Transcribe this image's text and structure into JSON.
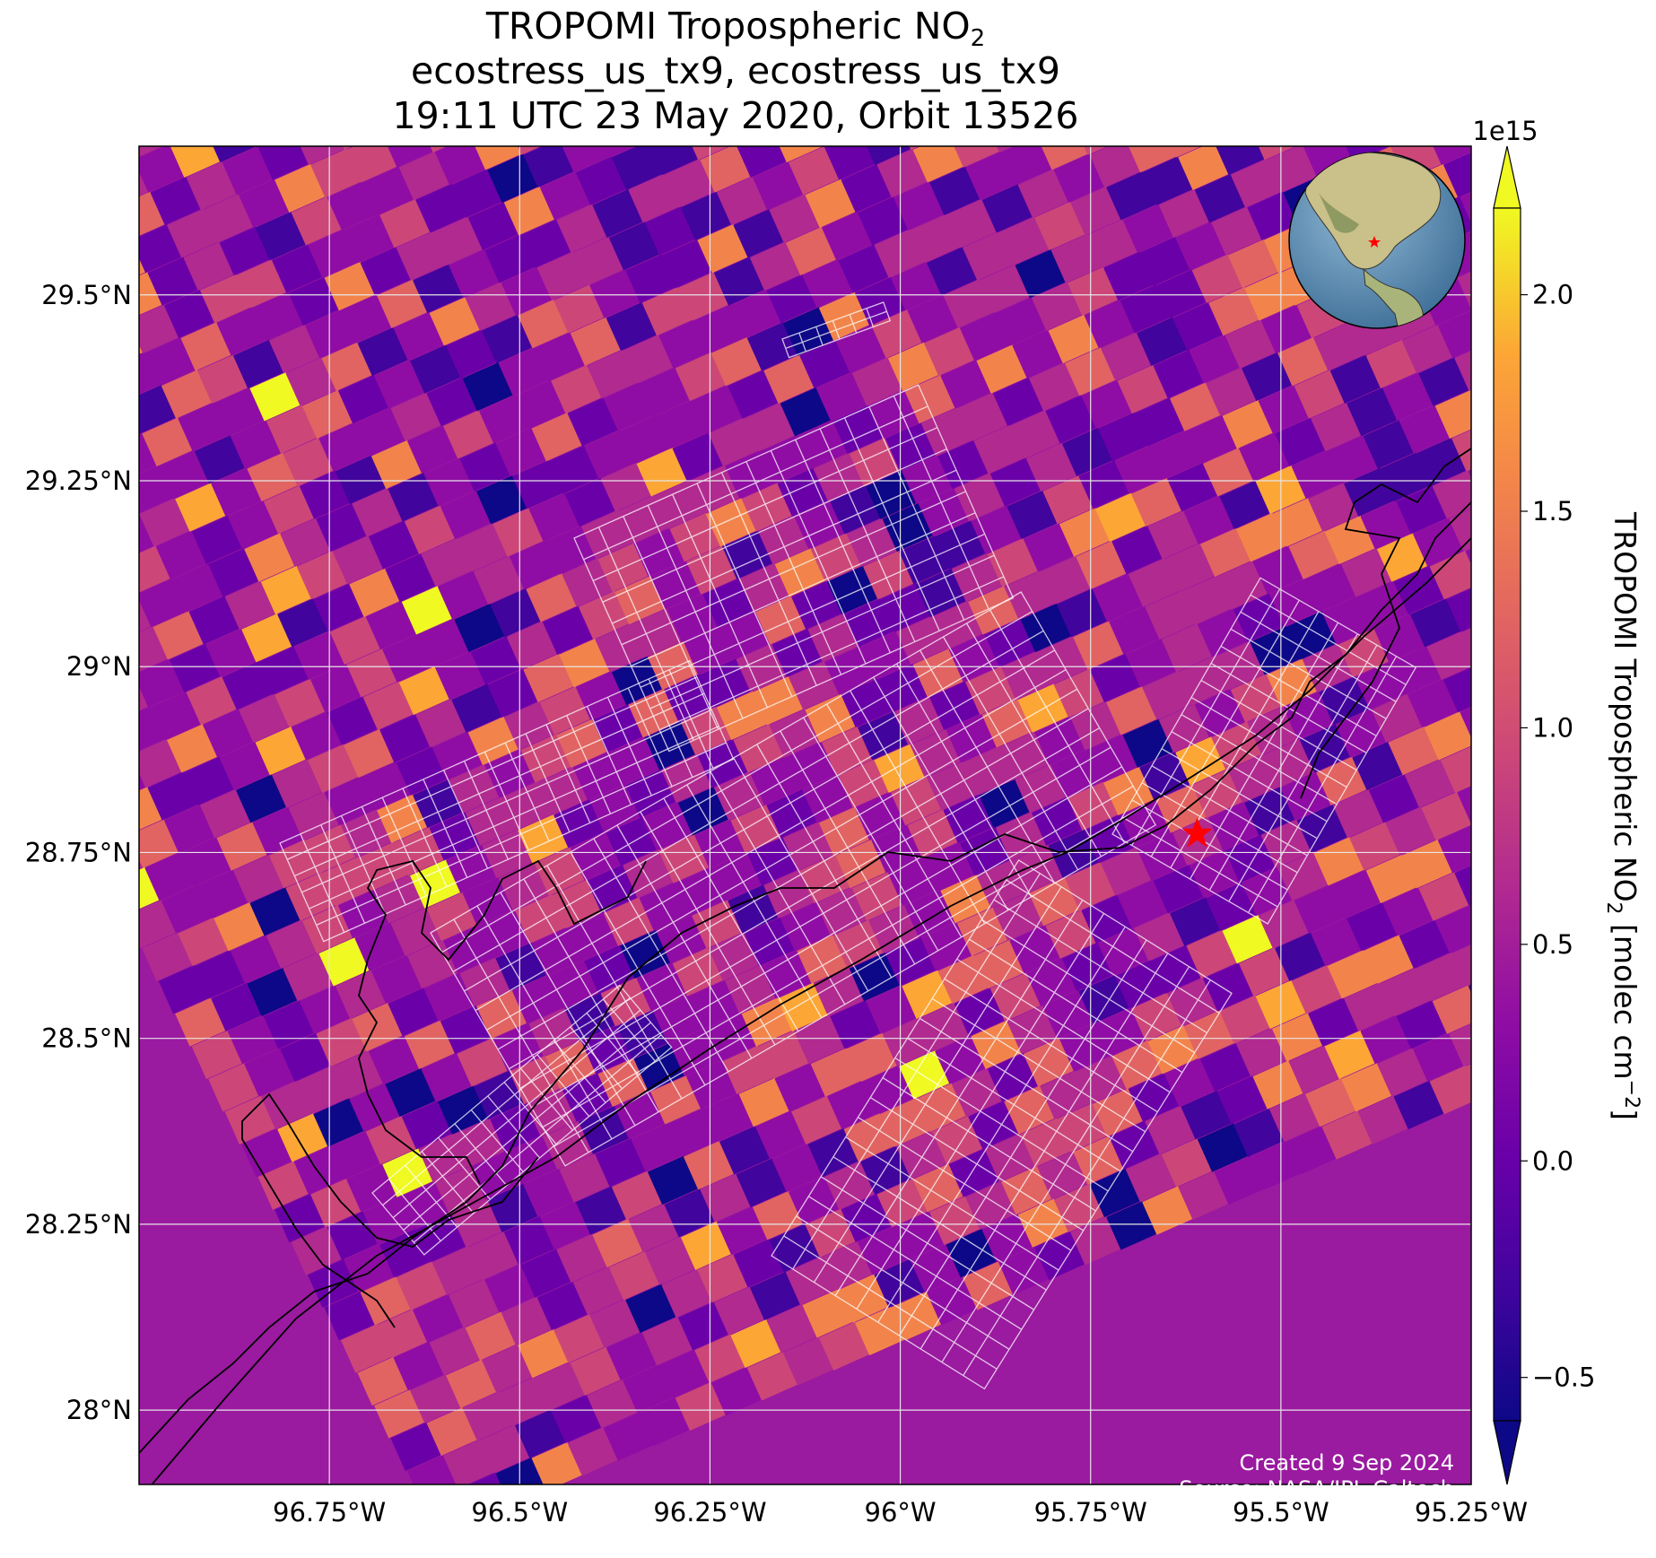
{
  "title": {
    "line1": "TROPOMI Tropospheric NO",
    "line1_sub": "2",
    "line2": "ecostress_us_tx9, ecostress_us_tx9",
    "line3": "19:11 UTC 23 May 2020, Orbit 13526"
  },
  "footer": {
    "created": "Created 9 Sep 2024",
    "source": "Source: NASA/JPL-Caltech"
  },
  "chart_data": {
    "type": "heatmap",
    "projection": "map",
    "xlim": [
      -97.0,
      -95.25
    ],
    "ylim": [
      27.9,
      29.7
    ],
    "x_ticks": [
      -96.75,
      -96.5,
      -96.25,
      -96.0,
      -95.75,
      -95.5,
      -95.25
    ],
    "x_tick_labels": [
      "96.75°W",
      "96.5°W",
      "96.25°W",
      "96°W",
      "95.75°W",
      "95.5°W",
      "95.25°W"
    ],
    "y_ticks": [
      28.0,
      28.25,
      28.5,
      28.75,
      29.0,
      29.25,
      29.5
    ],
    "y_tick_labels": [
      "28°N",
      "28.25°N",
      "28.5°N",
      "28.75°N",
      "29°N",
      "29.25°N",
      "29.5°N"
    ],
    "grid": true,
    "colormap": "plasma",
    "colorbar": {
      "label": "TROPOMI Tropospheric NO",
      "label_sub": "2",
      "label_unit": " [molec cm",
      "label_sup": "−2",
      "label_end": "]",
      "multiplier": "1e15",
      "vmin": -0.6,
      "vmax": 2.2,
      "ticks": [
        -0.5,
        0.0,
        0.5,
        1.0,
        1.5,
        2.0
      ],
      "tick_labels": [
        "−0.5",
        "0.0",
        "0.5",
        "1.0",
        "1.5",
        "2.0"
      ],
      "extend": "both"
    },
    "site_marker": {
      "lon": -95.61,
      "lat": 28.775,
      "symbol": "star",
      "color": "#ff0000"
    },
    "overlay": "ECOSTRESS footprint grid (white outlines)",
    "inset": "globe locator with red star over Texas"
  },
  "colors": {
    "grid": "#e6e6e6",
    "coastline": "#000000",
    "marker": "#ff0000",
    "footprint": "#ffffff"
  }
}
